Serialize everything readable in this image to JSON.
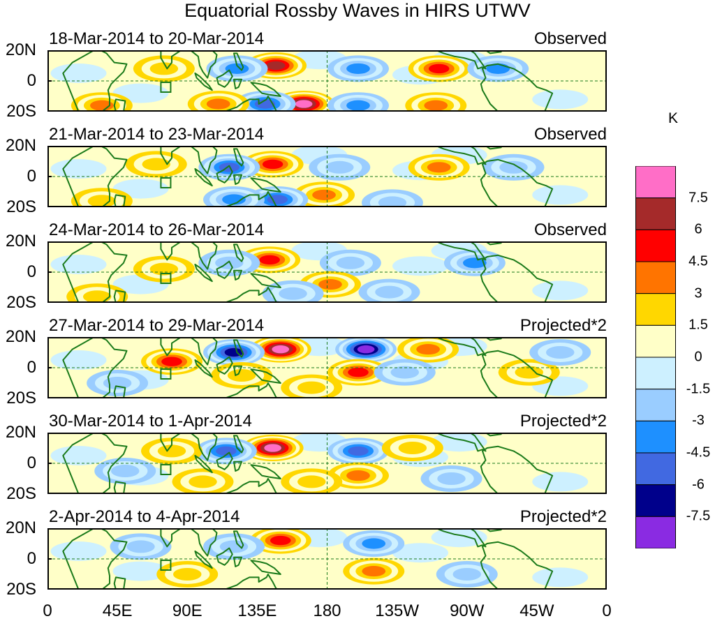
{
  "title": "Equatorial Rossby Waves in HIRS UTWV",
  "lat_labels": [
    "20N",
    "0",
    "20S"
  ],
  "lon_labels": [
    "0",
    "45E",
    "90E",
    "135E",
    "180",
    "135W",
    "90W",
    "45W",
    "0"
  ],
  "panels": [
    {
      "date": "18-Mar-2014 to 20-Mar-2014",
      "label": "Observed"
    },
    {
      "date": "21-Mar-2014 to 23-Mar-2014",
      "label": "Observed"
    },
    {
      "date": "24-Mar-2014 to 26-Mar-2014",
      "label": "Observed"
    },
    {
      "date": "27-Mar-2014 to 29-Mar-2014",
      "label": "Projected*2"
    },
    {
      "date": "30-Mar-2014 to 1-Apr-2014",
      "label": "Projected*2"
    },
    {
      "date": "2-Apr-2014 to 4-Apr-2014",
      "label": "Projected*2"
    }
  ],
  "colorbar": {
    "unit": "K",
    "levels": [
      "7.5",
      "6",
      "4.5",
      "3",
      "1.5",
      "0",
      "-1.5",
      "-3",
      "-4.5",
      "-6",
      "-7.5"
    ],
    "colors": [
      "#ff6ec7",
      "#a52a2a",
      "#ff0000",
      "#ff7400",
      "#ffd700",
      "#ffffc8",
      "#cdf0ff",
      "#9acdff",
      "#1e90ff",
      "#4169e1",
      "#00008b",
      "#8a2be2"
    ]
  },
  "anomalies": [
    [
      {
        "lon": 147,
        "lat": 10,
        "v": 7
      },
      {
        "lon": 252,
        "lat": 8,
        "v": 5
      },
      {
        "lon": 122,
        "lat": 8,
        "v": -4
      },
      {
        "lon": 200,
        "lat": 8,
        "v": -4
      },
      {
        "lon": 290,
        "lat": 8,
        "v": -4
      },
      {
        "lon": 165,
        "lat": -15,
        "v": 8
      },
      {
        "lon": 140,
        "lat": -15,
        "v": -6
      },
      {
        "lon": 110,
        "lat": -15,
        "v": 4
      },
      {
        "lon": 35,
        "lat": -16,
        "v": 4
      },
      {
        "lon": 250,
        "lat": -16,
        "v": 4
      },
      {
        "lon": 200,
        "lat": -16,
        "v": -4
      },
      {
        "lon": 75,
        "lat": 8,
        "v": 2
      }
    ],
    [
      {
        "lon": 145,
        "lat": 8,
        "v": 6
      },
      {
        "lon": 252,
        "lat": 6,
        "v": 4
      },
      {
        "lon": 117,
        "lat": 6,
        "v": -6
      },
      {
        "lon": 188,
        "lat": 6,
        "v": -3
      },
      {
        "lon": 300,
        "lat": 6,
        "v": -3
      },
      {
        "lon": 178,
        "lat": -12,
        "v": 4
      },
      {
        "lon": 148,
        "lat": -15,
        "v": -5
      },
      {
        "lon": 120,
        "lat": -15,
        "v": -4
      },
      {
        "lon": 35,
        "lat": -16,
        "v": 3
      },
      {
        "lon": 222,
        "lat": -17,
        "v": -3
      },
      {
        "lon": 70,
        "lat": 8,
        "v": 2
      }
    ],
    [
      {
        "lon": 143,
        "lat": 8,
        "v": 6
      },
      {
        "lon": 117,
        "lat": 6,
        "v": -3
      },
      {
        "lon": 195,
        "lat": 6,
        "v": -2
      },
      {
        "lon": 275,
        "lat": 6,
        "v": -4
      },
      {
        "lon": 182,
        "lat": -8,
        "v": 4
      },
      {
        "lon": 220,
        "lat": -13,
        "v": -3
      },
      {
        "lon": 158,
        "lat": -14,
        "v": -3
      },
      {
        "lon": 75,
        "lat": 2,
        "v": 2
      },
      {
        "lon": 32,
        "lat": -16,
        "v": 2
      }
    ],
    [
      {
        "lon": 150,
        "lat": 12,
        "v": 8
      },
      {
        "lon": 120,
        "lat": 10,
        "v": -7
      },
      {
        "lon": 80,
        "lat": 4,
        "v": 5
      },
      {
        "lon": 205,
        "lat": 12,
        "v": -8
      },
      {
        "lon": 245,
        "lat": 12,
        "v": 4
      },
      {
        "lon": 200,
        "lat": -3,
        "v": 6
      },
      {
        "lon": 170,
        "lat": -13,
        "v": 3
      },
      {
        "lon": 125,
        "lat": -5,
        "v": 3
      },
      {
        "lon": 230,
        "lat": -3,
        "v": -3
      },
      {
        "lon": 310,
        "lat": -3,
        "v": 3
      },
      {
        "lon": 45,
        "lat": -10,
        "v": -3
      },
      {
        "lon": 330,
        "lat": 10,
        "v": -2
      }
    ],
    [
      {
        "lon": 145,
        "lat": 10,
        "v": 8
      },
      {
        "lon": 115,
        "lat": 8,
        "v": -6
      },
      {
        "lon": 80,
        "lat": 8,
        "v": 3
      },
      {
        "lon": 200,
        "lat": 8,
        "v": -6
      },
      {
        "lon": 235,
        "lat": 10,
        "v": 3
      },
      {
        "lon": 200,
        "lat": -8,
        "v": 4
      },
      {
        "lon": 170,
        "lat": -12,
        "v": 3
      },
      {
        "lon": 100,
        "lat": -12,
        "v": 3
      },
      {
        "lon": 260,
        "lat": -10,
        "v": -3
      },
      {
        "lon": 50,
        "lat": -5,
        "v": -2
      }
    ],
    [
      {
        "lon": 150,
        "lat": 12,
        "v": 6
      },
      {
        "lon": 210,
        "lat": 10,
        "v": -4
      },
      {
        "lon": 120,
        "lat": 8,
        "v": -3
      },
      {
        "lon": 210,
        "lat": -8,
        "v": 4
      },
      {
        "lon": 90,
        "lat": -10,
        "v": 2
      },
      {
        "lon": 270,
        "lat": -10,
        "v": -2
      },
      {
        "lon": 60,
        "lat": 8,
        "v": -2
      }
    ]
  ]
}
